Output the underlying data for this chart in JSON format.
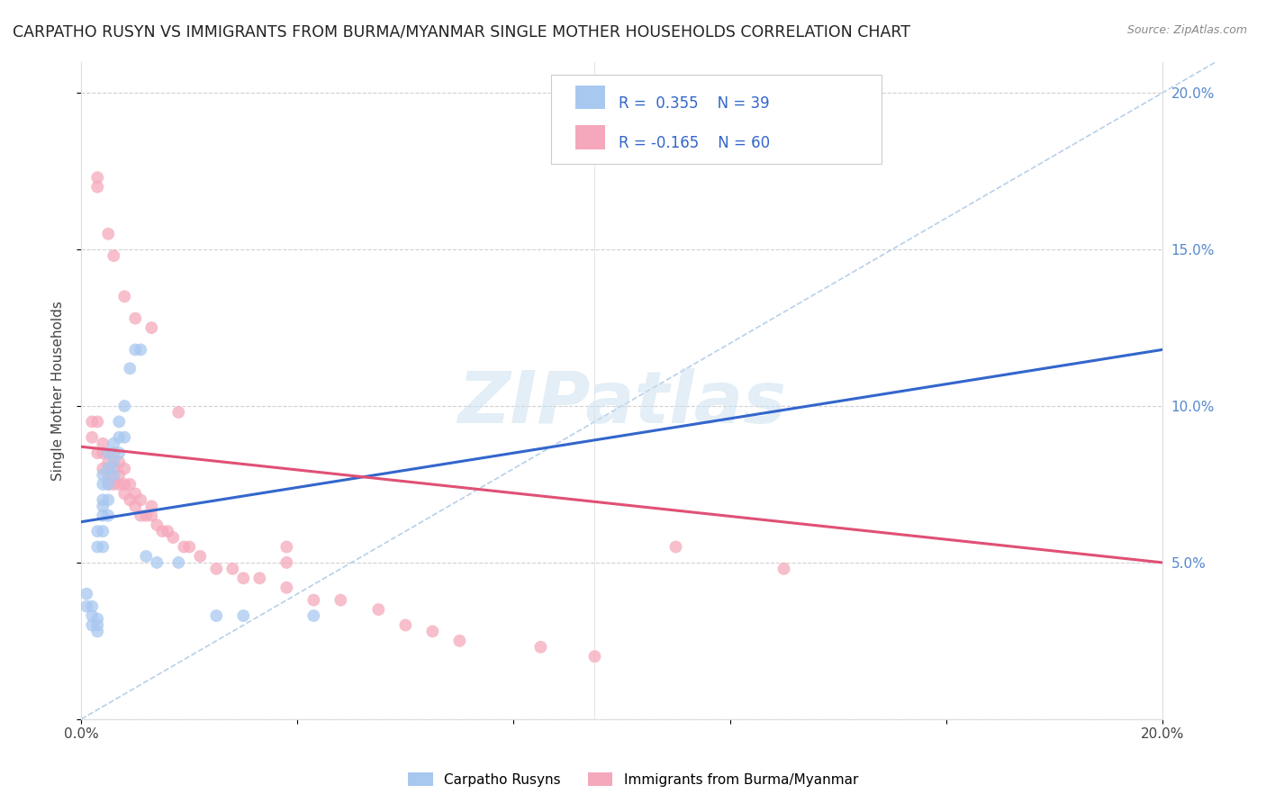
{
  "title": "CARPATHO RUSYN VS IMMIGRANTS FROM BURMA/MYANMAR SINGLE MOTHER HOUSEHOLDS CORRELATION CHART",
  "source": "Source: ZipAtlas.com",
  "ylabel": "Single Mother Households",
  "xlim": [
    0.0,
    0.2
  ],
  "ylim": [
    0.0,
    0.21
  ],
  "blue_color": "#a8c8f0",
  "pink_color": "#f5a8bb",
  "blue_line_color": "#3366cc",
  "pink_line_color": "#e05075",
  "dashed_line_color": "#b8d0e8",
  "scatter_alpha": 0.75,
  "scatter_size": 100,
  "watermark": "ZIPatlas",
  "legend_label_blue": "Carpatho Rusyns",
  "legend_label_pink": "Immigrants from Burma/Myanmar",
  "blue_R": "0.355",
  "blue_N": "39",
  "pink_R": "-0.165",
  "pink_N": "60",
  "blue_line_x0": 0.0,
  "blue_line_y0": 0.063,
  "blue_line_x1": 0.2,
  "blue_line_y1": 0.118,
  "pink_line_x0": 0.0,
  "pink_line_y0": 0.087,
  "pink_line_x1": 0.2,
  "pink_line_y1": 0.05,
  "blue_x": [
    0.001,
    0.001,
    0.002,
    0.002,
    0.002,
    0.003,
    0.003,
    0.003,
    0.003,
    0.003,
    0.004,
    0.004,
    0.004,
    0.004,
    0.004,
    0.004,
    0.004,
    0.005,
    0.005,
    0.005,
    0.005,
    0.005,
    0.006,
    0.006,
    0.006,
    0.007,
    0.007,
    0.007,
    0.008,
    0.008,
    0.009,
    0.01,
    0.011,
    0.012,
    0.014,
    0.018,
    0.025,
    0.03,
    0.043
  ],
  "blue_y": [
    0.036,
    0.04,
    0.03,
    0.033,
    0.036,
    0.028,
    0.03,
    0.032,
    0.055,
    0.06,
    0.055,
    0.06,
    0.065,
    0.068,
    0.07,
    0.075,
    0.078,
    0.065,
    0.07,
    0.075,
    0.08,
    0.085,
    0.078,
    0.082,
    0.088,
    0.085,
    0.09,
    0.095,
    0.09,
    0.1,
    0.112,
    0.118,
    0.118,
    0.052,
    0.05,
    0.05,
    0.033,
    0.033,
    0.033
  ],
  "pink_x": [
    0.002,
    0.002,
    0.003,
    0.003,
    0.004,
    0.004,
    0.004,
    0.005,
    0.005,
    0.005,
    0.006,
    0.006,
    0.006,
    0.007,
    0.007,
    0.007,
    0.008,
    0.008,
    0.008,
    0.009,
    0.009,
    0.01,
    0.01,
    0.011,
    0.011,
    0.012,
    0.013,
    0.013,
    0.014,
    0.015,
    0.016,
    0.017,
    0.019,
    0.02,
    0.022,
    0.025,
    0.028,
    0.03,
    0.033,
    0.038,
    0.043,
    0.048,
    0.055,
    0.06,
    0.065,
    0.07,
    0.085,
    0.095,
    0.11,
    0.13,
    0.003,
    0.003,
    0.005,
    0.006,
    0.008,
    0.01,
    0.013,
    0.018,
    0.038,
    0.038
  ],
  "pink_y": [
    0.09,
    0.095,
    0.085,
    0.095,
    0.08,
    0.085,
    0.088,
    0.075,
    0.078,
    0.082,
    0.075,
    0.08,
    0.085,
    0.075,
    0.078,
    0.082,
    0.072,
    0.075,
    0.08,
    0.07,
    0.075,
    0.068,
    0.072,
    0.065,
    0.07,
    0.065,
    0.065,
    0.068,
    0.062,
    0.06,
    0.06,
    0.058,
    0.055,
    0.055,
    0.052,
    0.048,
    0.048,
    0.045,
    0.045,
    0.042,
    0.038,
    0.038,
    0.035,
    0.03,
    0.028,
    0.025,
    0.023,
    0.02,
    0.055,
    0.048,
    0.17,
    0.173,
    0.155,
    0.148,
    0.135,
    0.128,
    0.125,
    0.098,
    0.055,
    0.05
  ]
}
